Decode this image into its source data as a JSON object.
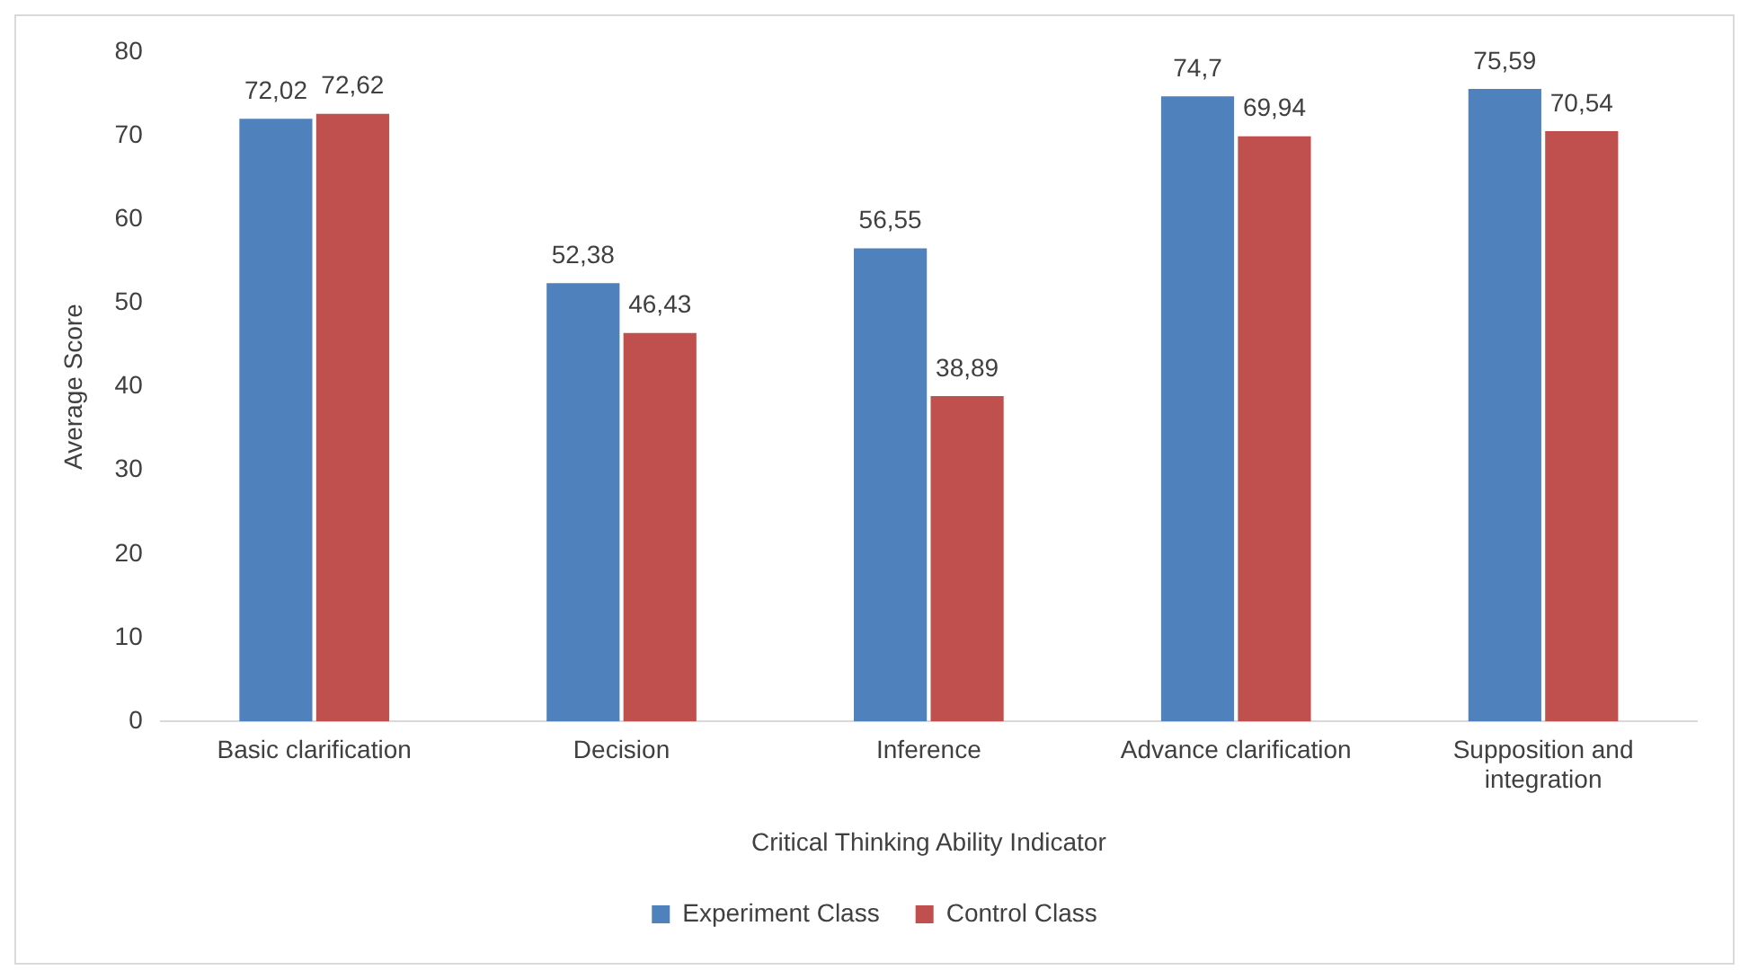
{
  "chart_data": {
    "type": "bar",
    "xlabel": "Critical Thinking Ability Indicator",
    "ylabel": "Average Score",
    "categories": [
      "Basic clarification",
      "Decision",
      "Inference",
      "Advance clarification",
      "Supposition and integration"
    ],
    "series": [
      {
        "name": "Experiment Class",
        "color": "#4f81bd",
        "values": [
          72.02,
          52.38,
          56.55,
          74.7,
          75.59
        ],
        "value_labels": [
          "72,02",
          "52,38",
          "56,55",
          "74,7",
          "75,59"
        ]
      },
      {
        "name": "Control Class",
        "color": "#c0504d",
        "values": [
          72.62,
          46.43,
          38.89,
          69.94,
          70.54
        ],
        "value_labels": [
          "72,62",
          "46,43",
          "38,89",
          "69,94",
          "70,54"
        ]
      }
    ],
    "ylim": [
      0,
      80
    ],
    "yticks": [
      0,
      10,
      20,
      30,
      40,
      50,
      60,
      70,
      80
    ],
    "grid": false,
    "legend": "bottom"
  }
}
